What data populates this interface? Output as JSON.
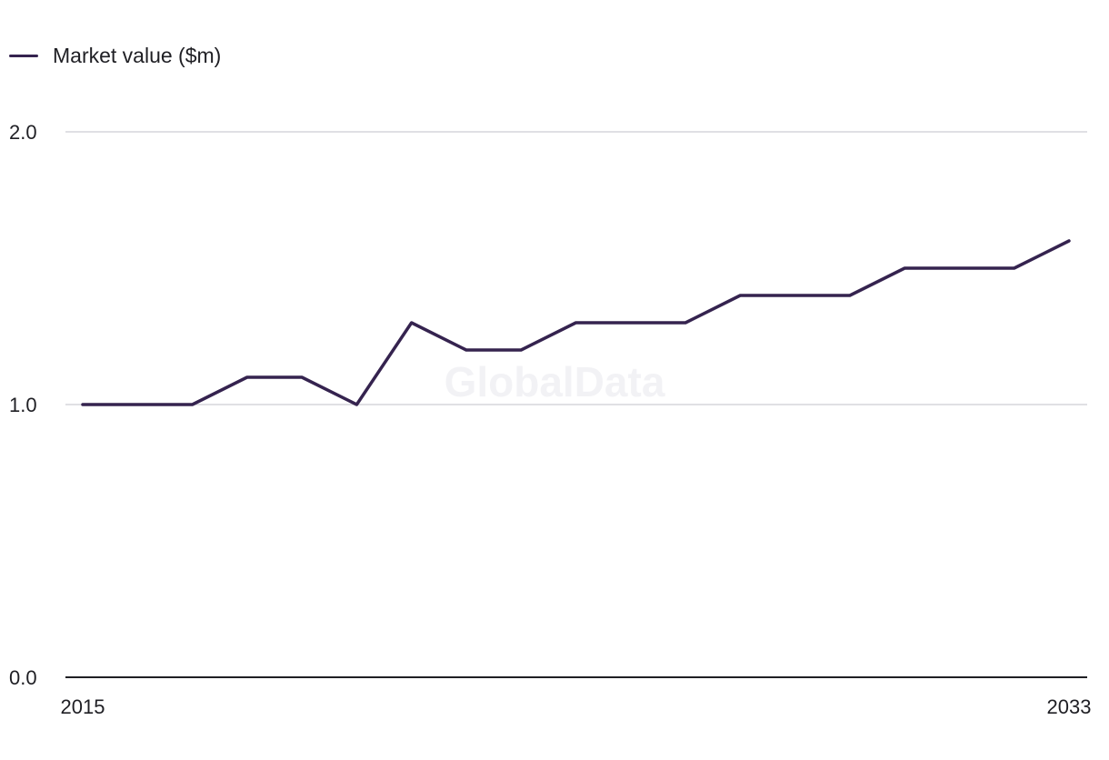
{
  "legend": {
    "label": "Market value ($m)"
  },
  "watermark": "GlobalData",
  "colors": {
    "series": "#35234f",
    "grid": "#d6d6dc",
    "baseline": "#1f1f24"
  },
  "chart_data": {
    "type": "line",
    "x": [
      2015,
      2016,
      2017,
      2018,
      2019,
      2020,
      2021,
      2022,
      2023,
      2024,
      2025,
      2026,
      2027,
      2028,
      2029,
      2030,
      2031,
      2032,
      2033
    ],
    "series": [
      {
        "name": "Market value ($m)",
        "values": [
          1.0,
          1.0,
          1.0,
          1.1,
          1.1,
          1.0,
          1.3,
          1.2,
          1.2,
          1.3,
          1.3,
          1.3,
          1.4,
          1.4,
          1.4,
          1.5,
          1.5,
          1.5,
          1.6
        ]
      }
    ],
    "x_tick_labels": [
      "2015",
      "2033"
    ],
    "y_ticks": [
      0.0,
      1.0,
      2.0
    ],
    "y_tick_labels": [
      "0.0",
      "1.0",
      "2.0"
    ],
    "ylim": [
      0,
      2
    ],
    "grid": true,
    "legend_position": "top-left"
  }
}
